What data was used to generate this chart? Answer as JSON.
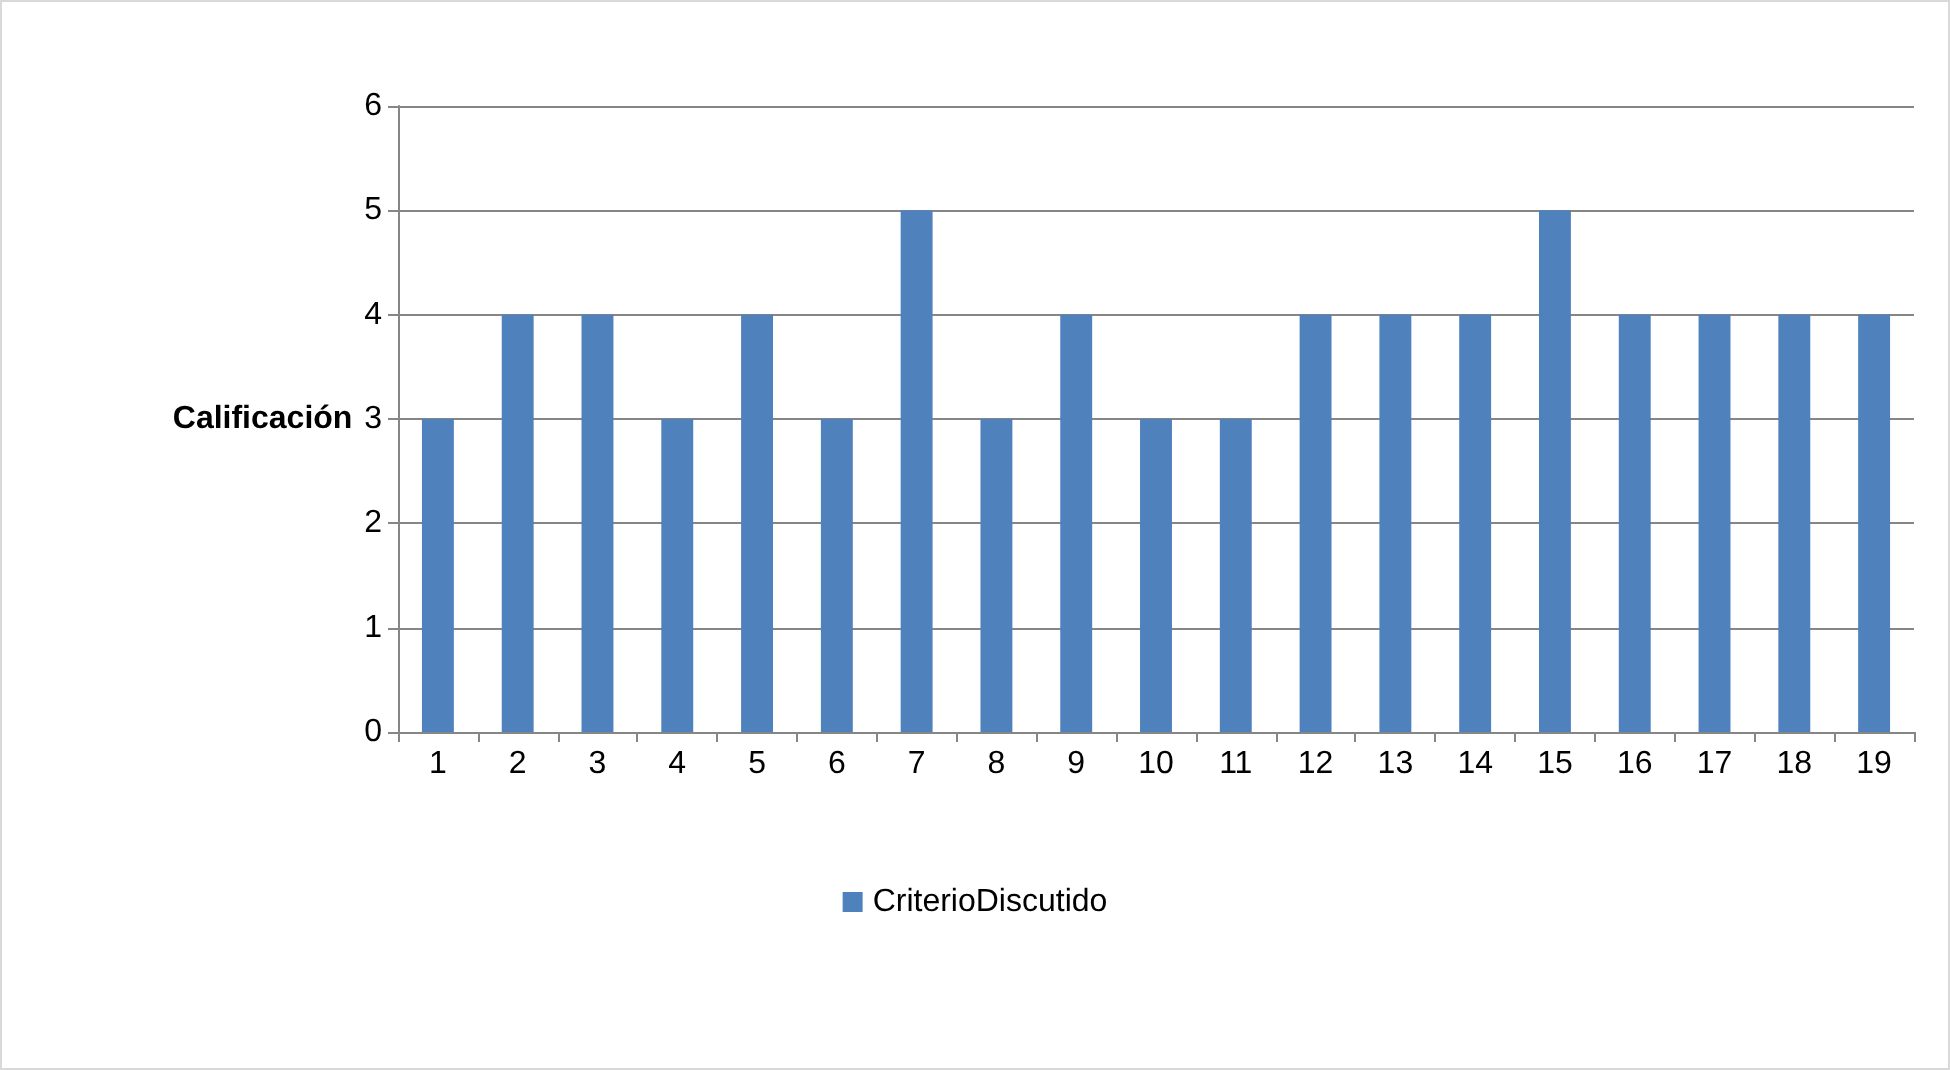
{
  "chart_data": {
    "type": "bar",
    "ylabel": "Calificación",
    "categories": [
      "1",
      "2",
      "3",
      "4",
      "5",
      "6",
      "7",
      "8",
      "9",
      "10",
      "11",
      "12",
      "13",
      "14",
      "15",
      "16",
      "17",
      "18",
      "19"
    ],
    "series": [
      {
        "name": "CriterioDiscutido",
        "color": "#4f81bd",
        "values": [
          3,
          4,
          4,
          3,
          4,
          3,
          5,
          3,
          4,
          3,
          3,
          4,
          4,
          4,
          5,
          4,
          4,
          4,
          4
        ]
      }
    ],
    "ylim": [
      0,
      6
    ],
    "yticks": [
      0,
      1,
      2,
      3,
      4,
      5,
      6
    ],
    "grid": "y",
    "legend": "bottom"
  }
}
